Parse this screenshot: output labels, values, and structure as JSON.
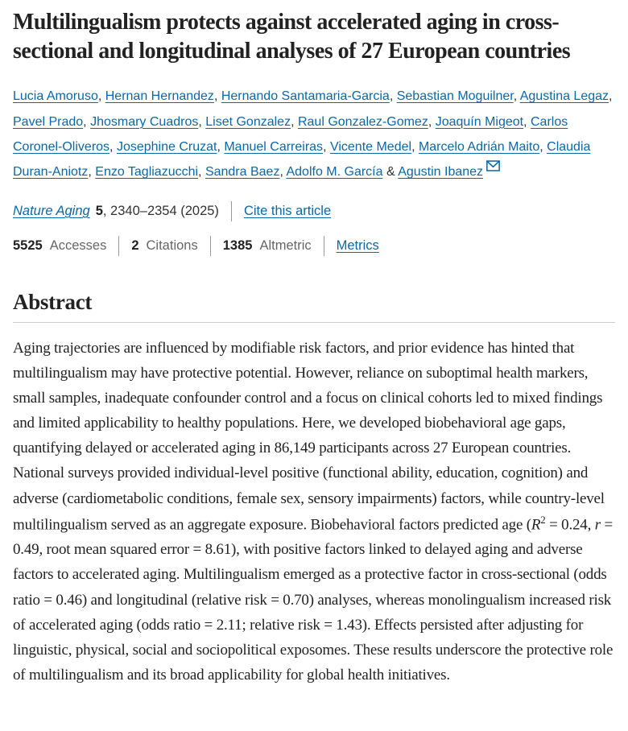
{
  "colors": {
    "link_blue": "#0b67a8",
    "text_dark": "#222222",
    "muted_gray": "#666666",
    "divider_gray": "#cccccc"
  },
  "icons": {
    "email": "envelope-icon"
  },
  "header": {
    "title": "Multilingualism protects against accelerated aging in cross-sectional and longitudinal analyses of 27 European countries"
  },
  "authors": {
    "items": [
      {
        "name": "Lucia Amoruso",
        "sep": ", "
      },
      {
        "name": "Hernan Hernandez",
        "sep": ", "
      },
      {
        "name": "Hernando Santamaria-Garcia",
        "sep": ", "
      },
      {
        "name": "Sebastian Moguilner",
        "sep": ", "
      },
      {
        "name": "Agustina Legaz",
        "sep": ", "
      },
      {
        "name": "Pavel Prado",
        "sep": ", "
      },
      {
        "name": "Jhosmary Cuadros",
        "sep": ", "
      },
      {
        "name": "Liset Gonzalez",
        "sep": ", "
      },
      {
        "name": "Raul Gonzalez-Gomez",
        "sep": ", "
      },
      {
        "name": "Joaquín Migeot",
        "sep": ", "
      },
      {
        "name": "Carlos Coronel-Oliveros",
        "sep": ", "
      },
      {
        "name": "Josephine Cruzat",
        "sep": ", "
      },
      {
        "name": "Manuel Carreiras",
        "sep": ", "
      },
      {
        "name": "Vicente Medel",
        "sep": ", "
      },
      {
        "name": "Marcelo Adrián Maito",
        "sep": ", "
      },
      {
        "name": "Claudia Duran-Aniotz",
        "sep": ", "
      },
      {
        "name": "Enzo Tagliazucchi",
        "sep": ", "
      },
      {
        "name": "Sandra Baez",
        "sep": ", "
      },
      {
        "name": "Adolfo M. García",
        "sep": " & "
      },
      {
        "name": "Agustin Ibanez",
        "sep": ""
      }
    ]
  },
  "citation": {
    "journal": "Nature Aging",
    "volume": "5",
    "pages": ", 2340–2354 (2025)",
    "cite_link": "Cite this article"
  },
  "metrics": {
    "items": [
      {
        "value": "5525",
        "label": "Accesses"
      },
      {
        "value": "2",
        "label": "Citations"
      },
      {
        "value": "1385",
        "label": "Altmetric"
      },
      {
        "label": "Metrics",
        "link": true
      }
    ]
  },
  "abstract": {
    "heading": "Abstract",
    "p1": "Aging trajectories are influenced by modifiable risk factors, and prior evidence has hinted that multilingualism may have protective potential. However, reliance on suboptimal health markers, small samples, inadequate confounder control and a focus on clinical cohorts led to mixed findings and limited applicability to healthy populations. Here, we developed biobehavioral age gaps, quantifying delayed or accelerated aging in 86,149 participants across 27 European countries. National surveys provided individual-level positive (functional ability, education, cognition) and adverse (cardiometabolic conditions, female sex, sensory impairments) factors, while country-level multilingualism served as an aggregate exposure. Biobehavioral factors predicted age (",
    "r2_var": "R",
    "r2_sup": "2",
    "p2": " = 0.24, ",
    "r_var": "r",
    "p3": " = 0.49, root mean squared error = 8.61), with positive factors linked to delayed aging and adverse factors to accelerated aging. Multilingualism emerged as a protective factor in cross-sectional (odds ratio = 0.46) and longitudinal (relative risk = 0.70) analyses, whereas monolingualism increased risk of accelerated aging (odds ratio = 2.11; relative risk = 1.43). Effects persisted after adjusting for linguistic, physical, social and sociopolitical exposomes. These results underscore the protective role of multilingualism and its broad applicability for global health initiatives."
  }
}
